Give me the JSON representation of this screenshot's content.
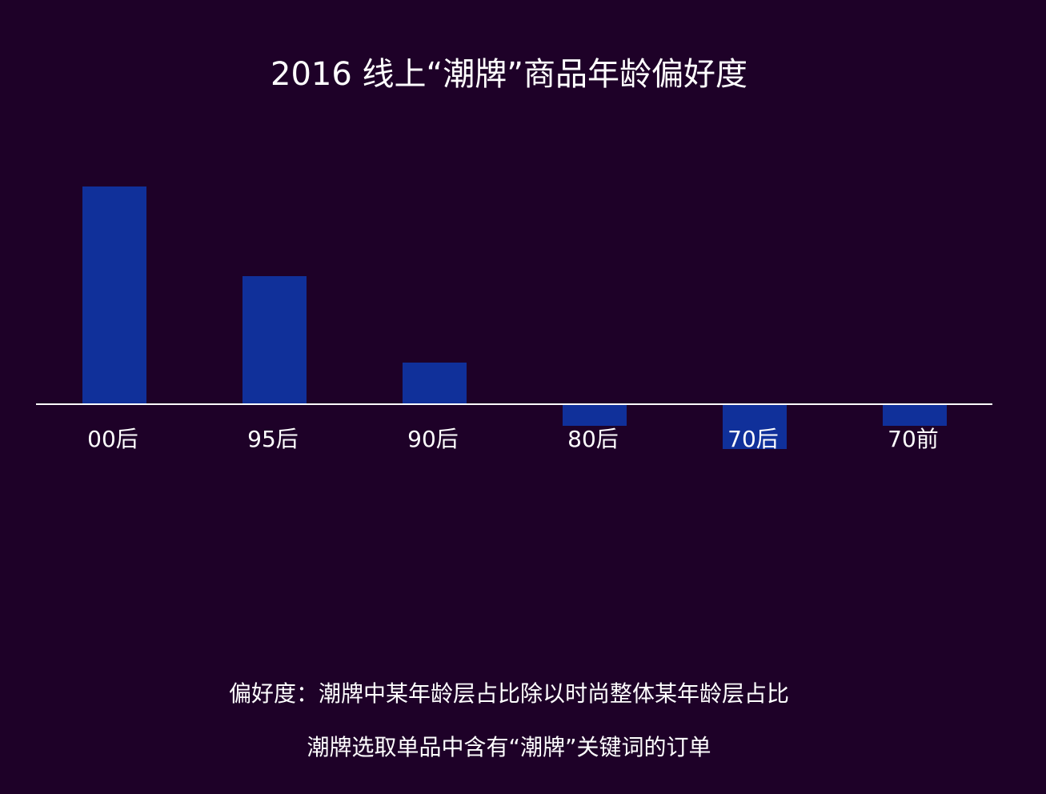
{
  "chart_data": {
    "type": "bar",
    "title": "2016 线上“潮牌”商品年龄偏好度",
    "categories": [
      "00后",
      "95后",
      "90后",
      "80后",
      "70后",
      "70前"
    ],
    "values": [
      2.72,
      1.6,
      0.52,
      -0.27,
      -0.56,
      -0.27
    ],
    "color": "#10309a",
    "ylim": [
      -1,
      3
    ],
    "notes": [
      "偏好度：潮牌中某年龄层占比除以时尚整体某年龄层占比",
      "潮牌选取单品中含有“潮牌”关键词的订单"
    ]
  }
}
